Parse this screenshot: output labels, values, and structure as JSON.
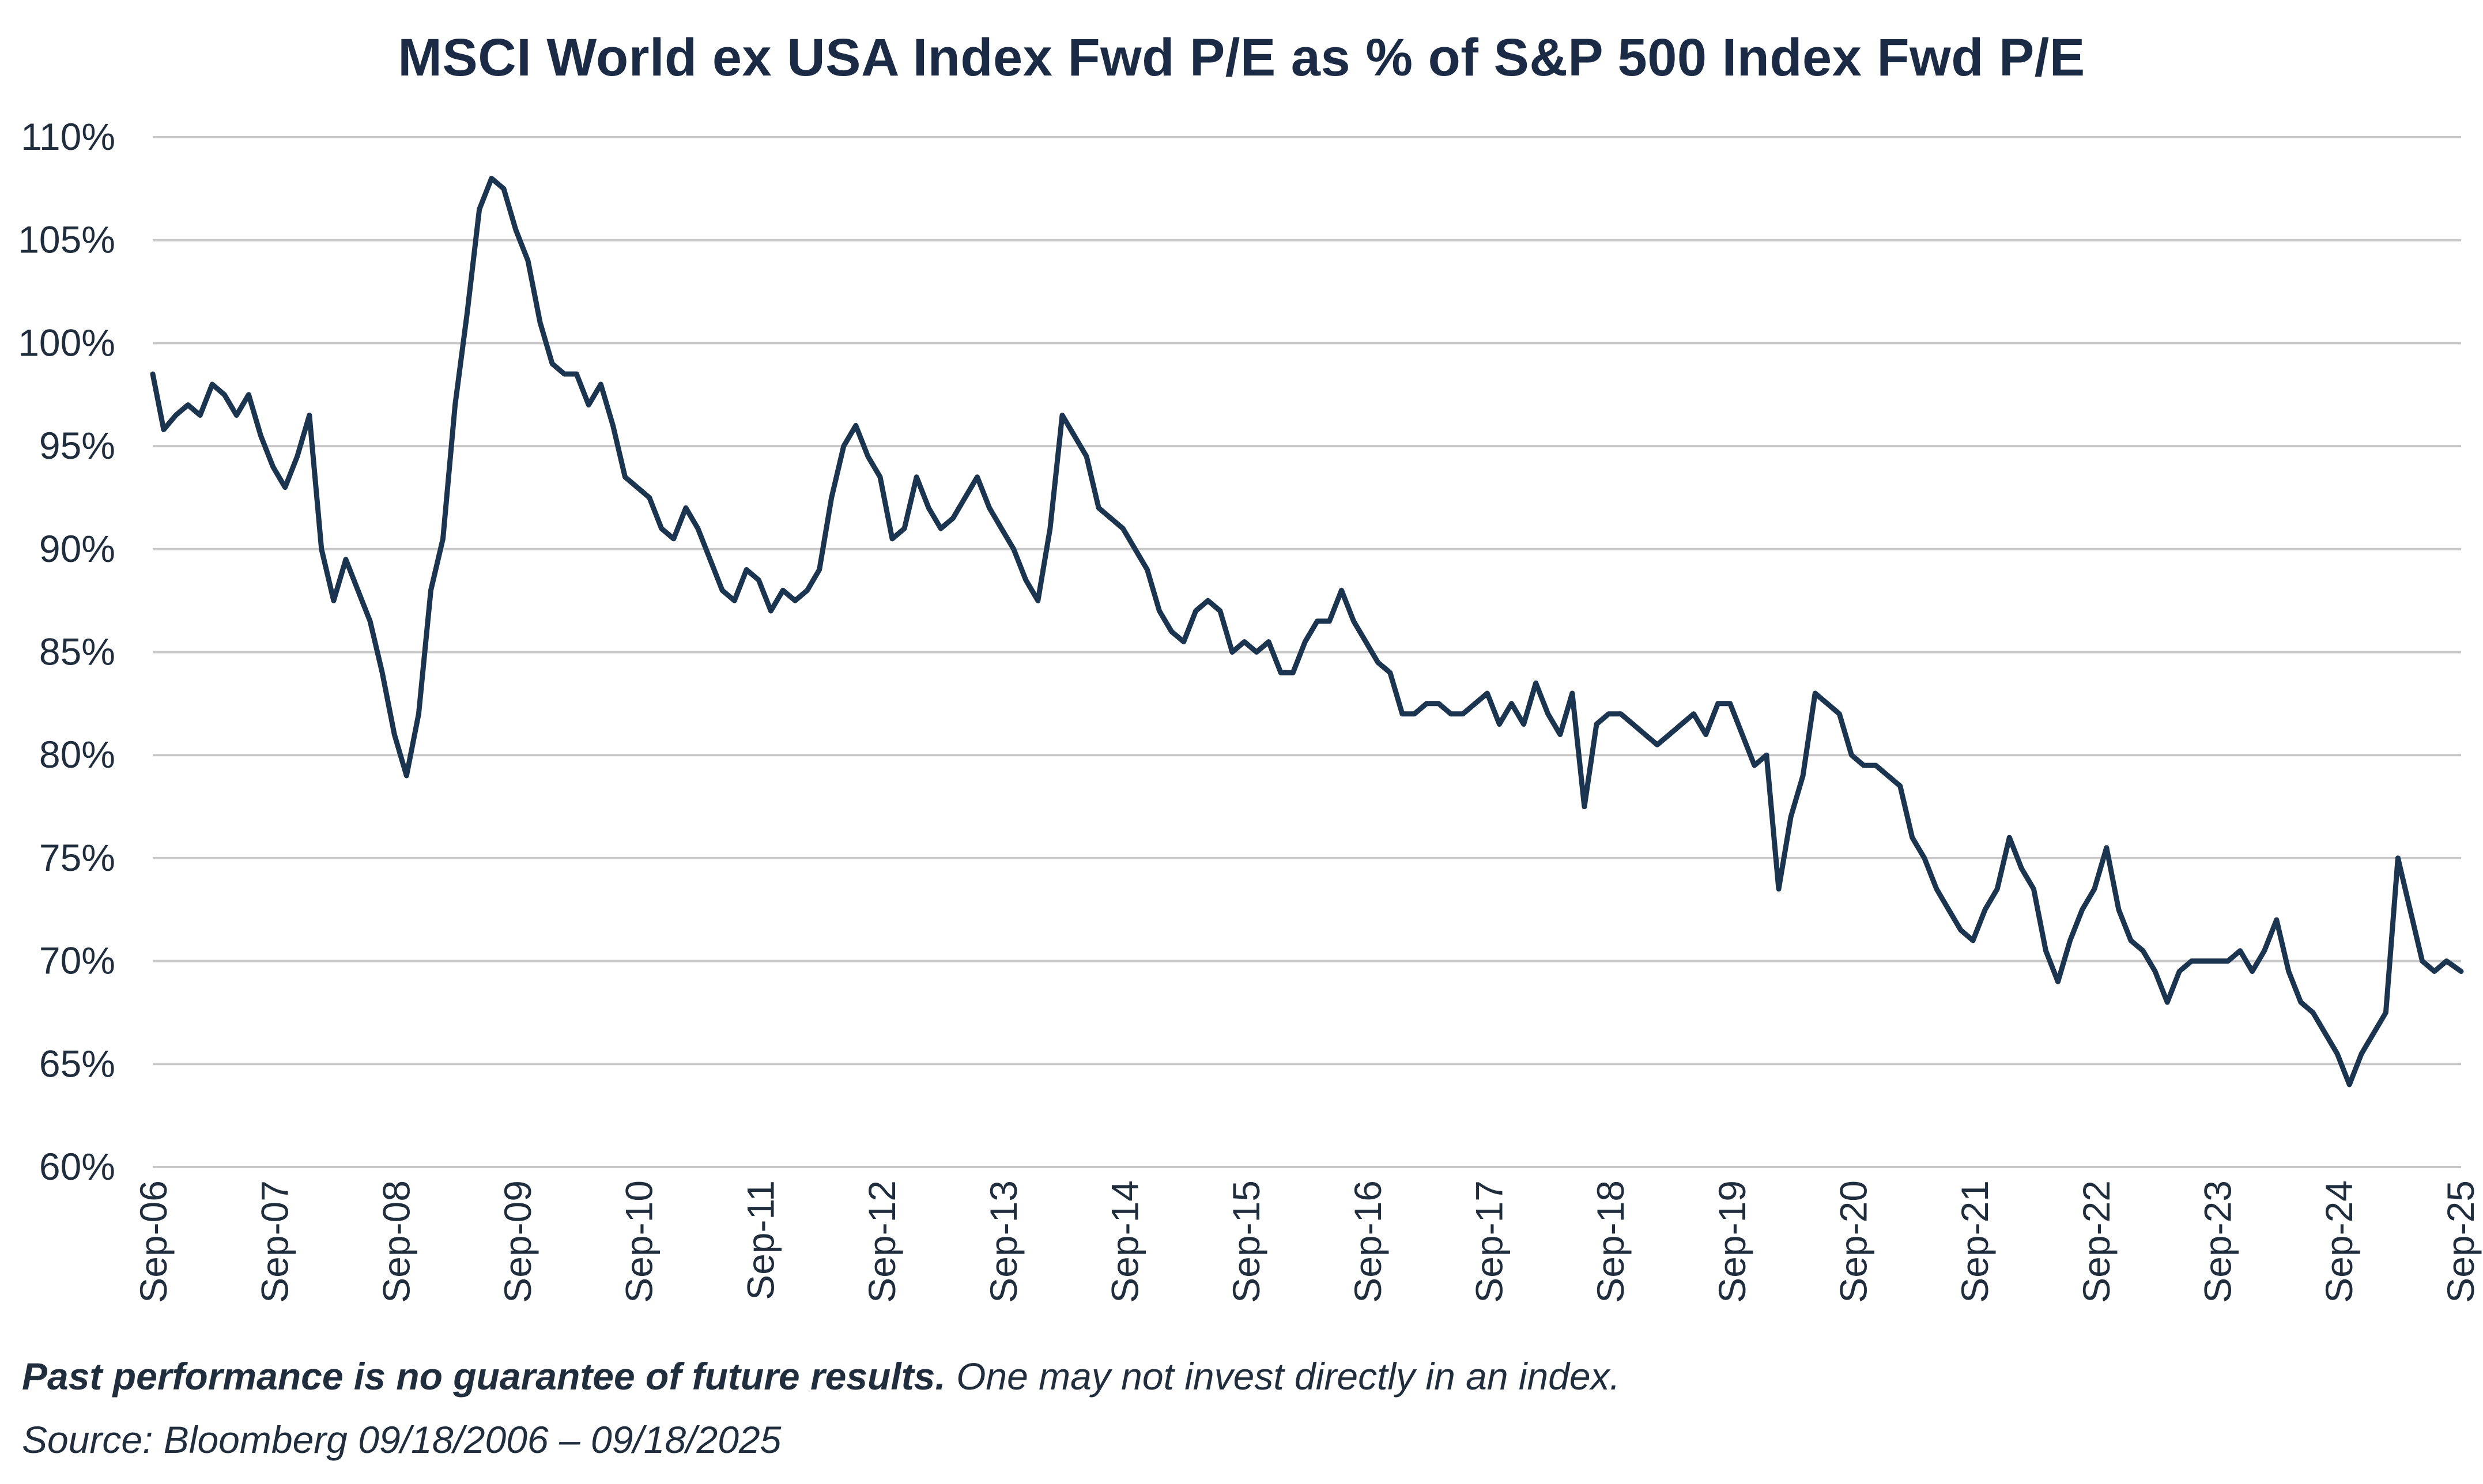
{
  "chart_data": {
    "type": "line",
    "title": "MSCI World ex USA Index Fwd P/E as % of S&P 500 Index Fwd P/E",
    "xlabel": "",
    "ylabel": "",
    "ylim": [
      60,
      110
    ],
    "y_ticks": [
      {
        "value": 110,
        "label": "110%"
      },
      {
        "value": 105,
        "label": "105%"
      },
      {
        "value": 100,
        "label": "100%"
      },
      {
        "value": 95,
        "label": "95%"
      },
      {
        "value": 90,
        "label": "90%"
      },
      {
        "value": 85,
        "label": "85%"
      },
      {
        "value": 80,
        "label": "80%"
      },
      {
        "value": 75,
        "label": "75%"
      },
      {
        "value": 70,
        "label": "70%"
      },
      {
        "value": 65,
        "label": "65%"
      },
      {
        "value": 60,
        "label": "60%"
      }
    ],
    "xlim": [
      2006.71,
      2025.72
    ],
    "x_ticks": [
      {
        "value": 2006.71,
        "label": "Sep-06"
      },
      {
        "value": 2007.71,
        "label": "Sep-07"
      },
      {
        "value": 2008.71,
        "label": "Sep-08"
      },
      {
        "value": 2009.71,
        "label": "Sep-09"
      },
      {
        "value": 2010.71,
        "label": "Sep-10"
      },
      {
        "value": 2011.71,
        "label": "Sep-11"
      },
      {
        "value": 2012.71,
        "label": "Sep-12"
      },
      {
        "value": 2013.71,
        "label": "Sep-13"
      },
      {
        "value": 2014.71,
        "label": "Sep-14"
      },
      {
        "value": 2015.71,
        "label": "Sep-15"
      },
      {
        "value": 2016.71,
        "label": "Sep-16"
      },
      {
        "value": 2017.71,
        "label": "Sep-17"
      },
      {
        "value": 2018.71,
        "label": "Sep-18"
      },
      {
        "value": 2019.71,
        "label": "Sep-19"
      },
      {
        "value": 2020.71,
        "label": "Sep-20"
      },
      {
        "value": 2021.71,
        "label": "Sep-21"
      },
      {
        "value": 2022.71,
        "label": "Sep-22"
      },
      {
        "value": 2023.71,
        "label": "Sep-23"
      },
      {
        "value": 2024.71,
        "label": "Sep-24"
      },
      {
        "value": 2025.71,
        "label": "Sep-25"
      }
    ],
    "grid": true,
    "series": [
      {
        "name": "MSCI World ex USA Fwd P/E as % of S&P 500 Fwd P/E",
        "color": "#1b3450",
        "x": [
          2006.71,
          2006.8,
          2006.9,
          2007.0,
          2007.1,
          2007.2,
          2007.3,
          2007.4,
          2007.5,
          2007.6,
          2007.7,
          2007.8,
          2007.9,
          2008.0,
          2008.1,
          2008.2,
          2008.3,
          2008.4,
          2008.5,
          2008.6,
          2008.7,
          2008.8,
          2008.9,
          2009.0,
          2009.1,
          2009.2,
          2009.3,
          2009.4,
          2009.5,
          2009.6,
          2009.7,
          2009.8,
          2009.9,
          2010.0,
          2010.1,
          2010.2,
          2010.3,
          2010.4,
          2010.5,
          2010.6,
          2010.7,
          2010.8,
          2010.9,
          2011.0,
          2011.1,
          2011.2,
          2011.3,
          2011.4,
          2011.5,
          2011.6,
          2011.7,
          2011.8,
          2011.9,
          2012.0,
          2012.1,
          2012.2,
          2012.3,
          2012.4,
          2012.5,
          2012.6,
          2012.7,
          2012.8,
          2012.9,
          2013.0,
          2013.1,
          2013.2,
          2013.3,
          2013.4,
          2013.5,
          2013.6,
          2013.7,
          2013.8,
          2013.9,
          2014.0,
          2014.1,
          2014.2,
          2014.3,
          2014.4,
          2014.5,
          2014.6,
          2014.7,
          2014.8,
          2014.9,
          2015.0,
          2015.1,
          2015.2,
          2015.3,
          2015.4,
          2015.5,
          2015.6,
          2015.7,
          2015.8,
          2015.9,
          2016.0,
          2016.1,
          2016.2,
          2016.3,
          2016.4,
          2016.5,
          2016.6,
          2016.7,
          2016.8,
          2016.9,
          2017.0,
          2017.1,
          2017.2,
          2017.3,
          2017.4,
          2017.5,
          2017.6,
          2017.7,
          2017.8,
          2017.9,
          2018.0,
          2018.1,
          2018.2,
          2018.3,
          2018.4,
          2018.5,
          2018.6,
          2018.7,
          2018.8,
          2018.9,
          2019.0,
          2019.1,
          2019.2,
          2019.3,
          2019.4,
          2019.5,
          2019.6,
          2019.7,
          2019.8,
          2019.9,
          2020.0,
          2020.1,
          2020.2,
          2020.3,
          2020.4,
          2020.5,
          2020.6,
          2020.7,
          2020.8,
          2020.9,
          2021.0,
          2021.1,
          2021.2,
          2021.3,
          2021.4,
          2021.5,
          2021.6,
          2021.7,
          2021.8,
          2021.9,
          2022.0,
          2022.1,
          2022.2,
          2022.3,
          2022.4,
          2022.5,
          2022.6,
          2022.7,
          2022.8,
          2022.9,
          2023.0,
          2023.1,
          2023.2,
          2023.3,
          2023.4,
          2023.5,
          2023.6,
          2023.7,
          2023.8,
          2023.9,
          2024.0,
          2024.1,
          2024.2,
          2024.3,
          2024.4,
          2024.5,
          2024.6,
          2024.7,
          2024.8,
          2024.9,
          2025.0,
          2025.1,
          2025.2,
          2025.3,
          2025.4,
          2025.5,
          2025.6,
          2025.72
        ],
        "values": [
          98.5,
          95.8,
          96.5,
          97.0,
          96.5,
          98.0,
          97.5,
          96.5,
          97.5,
          95.5,
          94.0,
          93.0,
          94.5,
          96.5,
          90.0,
          87.5,
          89.5,
          88.0,
          86.5,
          84.0,
          81.0,
          79.0,
          82.0,
          88.0,
          90.5,
          97.0,
          101.5,
          106.5,
          108.0,
          107.5,
          105.5,
          104.0,
          101.0,
          99.0,
          98.5,
          98.5,
          97.0,
          98.0,
          96.0,
          93.5,
          93.0,
          92.5,
          91.0,
          90.5,
          92.0,
          91.0,
          89.5,
          88.0,
          87.5,
          89.0,
          88.5,
          87.0,
          88.0,
          87.5,
          88.0,
          89.0,
          92.5,
          95.0,
          96.0,
          94.5,
          93.5,
          90.5,
          91.0,
          93.5,
          92.0,
          91.0,
          91.5,
          92.5,
          93.5,
          92.0,
          91.0,
          90.0,
          88.5,
          87.5,
          91.0,
          96.5,
          95.5,
          94.5,
          92.0,
          91.5,
          91.0,
          90.0,
          89.0,
          87.0,
          86.0,
          85.5,
          87.0,
          87.5,
          87.0,
          85.0,
          85.5,
          85.0,
          85.5,
          84.0,
          84.0,
          85.5,
          86.5,
          86.5,
          88.0,
          86.5,
          85.5,
          84.5,
          84.0,
          82.0,
          82.0,
          82.5,
          82.5,
          82.0,
          82.0,
          82.5,
          83.0,
          81.5,
          82.5,
          81.5,
          83.5,
          82.0,
          81.0,
          83.0,
          77.5,
          81.5,
          82.0,
          82.0,
          81.5,
          81.0,
          80.5,
          81.0,
          81.5,
          82.0,
          81.0,
          82.5,
          82.5,
          81.0,
          79.5,
          80.0,
          73.5,
          77.0,
          79.0,
          83.0,
          82.5,
          82.0,
          80.0,
          79.5,
          79.5,
          79.0,
          78.5,
          76.0,
          75.0,
          73.5,
          72.5,
          71.5,
          71.0,
          72.5,
          73.5,
          76.0,
          74.5,
          73.5,
          70.5,
          69.0,
          71.0,
          72.5,
          73.5,
          75.5,
          72.5,
          71.0,
          70.5,
          69.5,
          68.0,
          69.5,
          70.0,
          70.0,
          70.0,
          70.0,
          70.5,
          69.5,
          70.5,
          72.0,
          69.5,
          68.0,
          67.5,
          66.5,
          65.5,
          64.0,
          65.5,
          66.5,
          67.5,
          75.0,
          72.5,
          70.0,
          69.5,
          70.0,
          69.5
        ]
      }
    ]
  },
  "footnote": {
    "bold_text": "Past performance is no guarantee of future results.",
    "regular_text": " One may not invest directly in an index."
  },
  "source": "Source: Bloomberg 09/18/2006 – 09/18/2025"
}
